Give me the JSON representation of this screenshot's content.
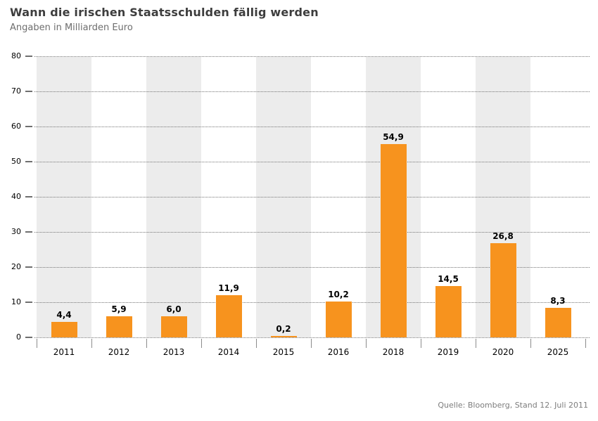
{
  "chart_data": {
    "type": "bar",
    "title": "Wann die irischen Staatsschulden fällig werden",
    "subtitle": "Angaben in Milliarden Euro",
    "source": "Quelle: Bloomberg, Stand 12. Juli 2011",
    "categories": [
      "2011",
      "2012",
      "2013",
      "2014",
      "2015",
      "2016",
      "2018",
      "2019",
      "2020",
      "2025"
    ],
    "values": [
      4.4,
      5.9,
      6.0,
      11.9,
      0.2,
      10.2,
      54.9,
      14.5,
      26.8,
      8.3
    ],
    "value_labels": [
      "4,4",
      "5,9",
      "6,0",
      "11,9",
      "0,2",
      "10,2",
      "54,9",
      "14,5",
      "26,8",
      "8,3"
    ],
    "xlabel": "",
    "ylabel": "",
    "ylim": [
      0,
      80
    ],
    "yticks": [
      0,
      10,
      20,
      30,
      40,
      50,
      60,
      70,
      80
    ],
    "ytick_labels": [
      "0",
      "10",
      "20",
      "30",
      "40",
      "50",
      "60",
      "70",
      "80"
    ],
    "grid": "horizontal-dotted",
    "legend": "none",
    "bar_color": "#f7931e",
    "band_color": "#ececec"
  }
}
